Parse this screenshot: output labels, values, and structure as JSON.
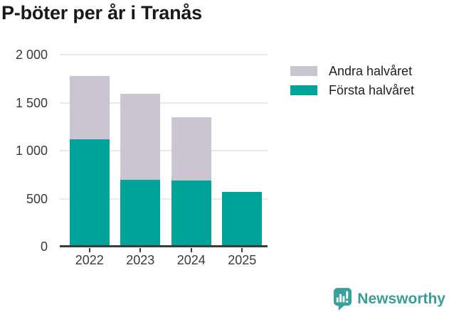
{
  "title": "P-böter per år i Tranås",
  "chart_data": {
    "type": "bar",
    "stacked": true,
    "title": "P-böter per år i Tranås",
    "categories": [
      "2022",
      "2023",
      "2024",
      "2025"
    ],
    "series": [
      {
        "name": "Första halvåret",
        "color": "#00a39a",
        "values": [
          1115,
          700,
          690,
          570
        ]
      },
      {
        "name": "Andra halvåret",
        "color": "#c9c6d1",
        "values": [
          660,
          895,
          655,
          0
        ]
      }
    ],
    "ylim": [
      0,
      2000
    ],
    "yticks": [
      {
        "value": 0,
        "label": "0"
      },
      {
        "value": 500,
        "label": "500"
      },
      {
        "value": 1000,
        "label": "1 000"
      },
      {
        "value": 1500,
        "label": "1 500"
      },
      {
        "value": 2000,
        "label": "2 000"
      }
    ],
    "grid": true,
    "legend_position": "top-right",
    "xlabel": "",
    "ylabel": ""
  },
  "legend": {
    "entries": [
      {
        "label": "Andra halvåret",
        "color": "#c9c6d1"
      },
      {
        "label": "Första halvåret",
        "color": "#00a39a"
      }
    ]
  },
  "branding": {
    "logo_text": "Newsworthy",
    "brand_color": "#3e9c98"
  }
}
